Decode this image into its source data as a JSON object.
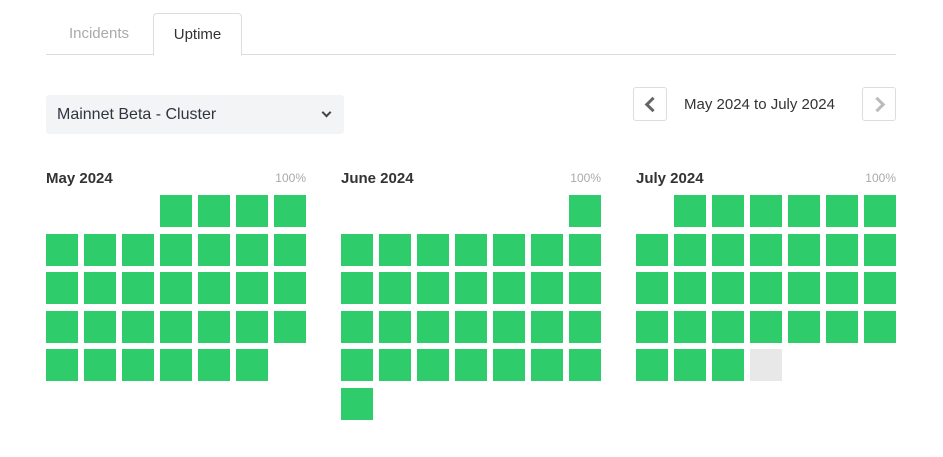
{
  "tabs": [
    {
      "label": "Incidents",
      "active": false
    },
    {
      "label": "Uptime",
      "active": true
    }
  ],
  "cluster_select": {
    "value": "Mainnet Beta - Cluster"
  },
  "date_range": {
    "label": "May 2024 to July 2024",
    "prev_enabled": true,
    "next_enabled": false
  },
  "colors": {
    "up": "#2ecc6a",
    "no_data": "#e8e8e8"
  },
  "months": [
    {
      "title": "May 2024",
      "uptime": "100%",
      "first_weekday": 3,
      "days": [
        "up",
        "up",
        "up",
        "up",
        "up",
        "up",
        "up",
        "up",
        "up",
        "up",
        "up",
        "up",
        "up",
        "up",
        "up",
        "up",
        "up",
        "up",
        "up",
        "up",
        "up",
        "up",
        "up",
        "up",
        "up",
        "up",
        "up",
        "up",
        "up",
        "up",
        "up"
      ]
    },
    {
      "title": "June 2024",
      "uptime": "100%",
      "first_weekday": 6,
      "days": [
        "up",
        "up",
        "up",
        "up",
        "up",
        "up",
        "up",
        "up",
        "up",
        "up",
        "up",
        "up",
        "up",
        "up",
        "up",
        "up",
        "up",
        "up",
        "up",
        "up",
        "up",
        "up",
        "up",
        "up",
        "up",
        "up",
        "up",
        "up",
        "up",
        "up"
      ]
    },
    {
      "title": "July 2024",
      "uptime": "100%",
      "first_weekday": 1,
      "days": [
        "up",
        "up",
        "up",
        "up",
        "up",
        "up",
        "up",
        "up",
        "up",
        "up",
        "up",
        "up",
        "up",
        "up",
        "up",
        "up",
        "up",
        "up",
        "up",
        "up",
        "up",
        "up",
        "up",
        "up",
        "up",
        "up",
        "up",
        "up",
        "up",
        "up",
        "no_data"
      ]
    }
  ]
}
